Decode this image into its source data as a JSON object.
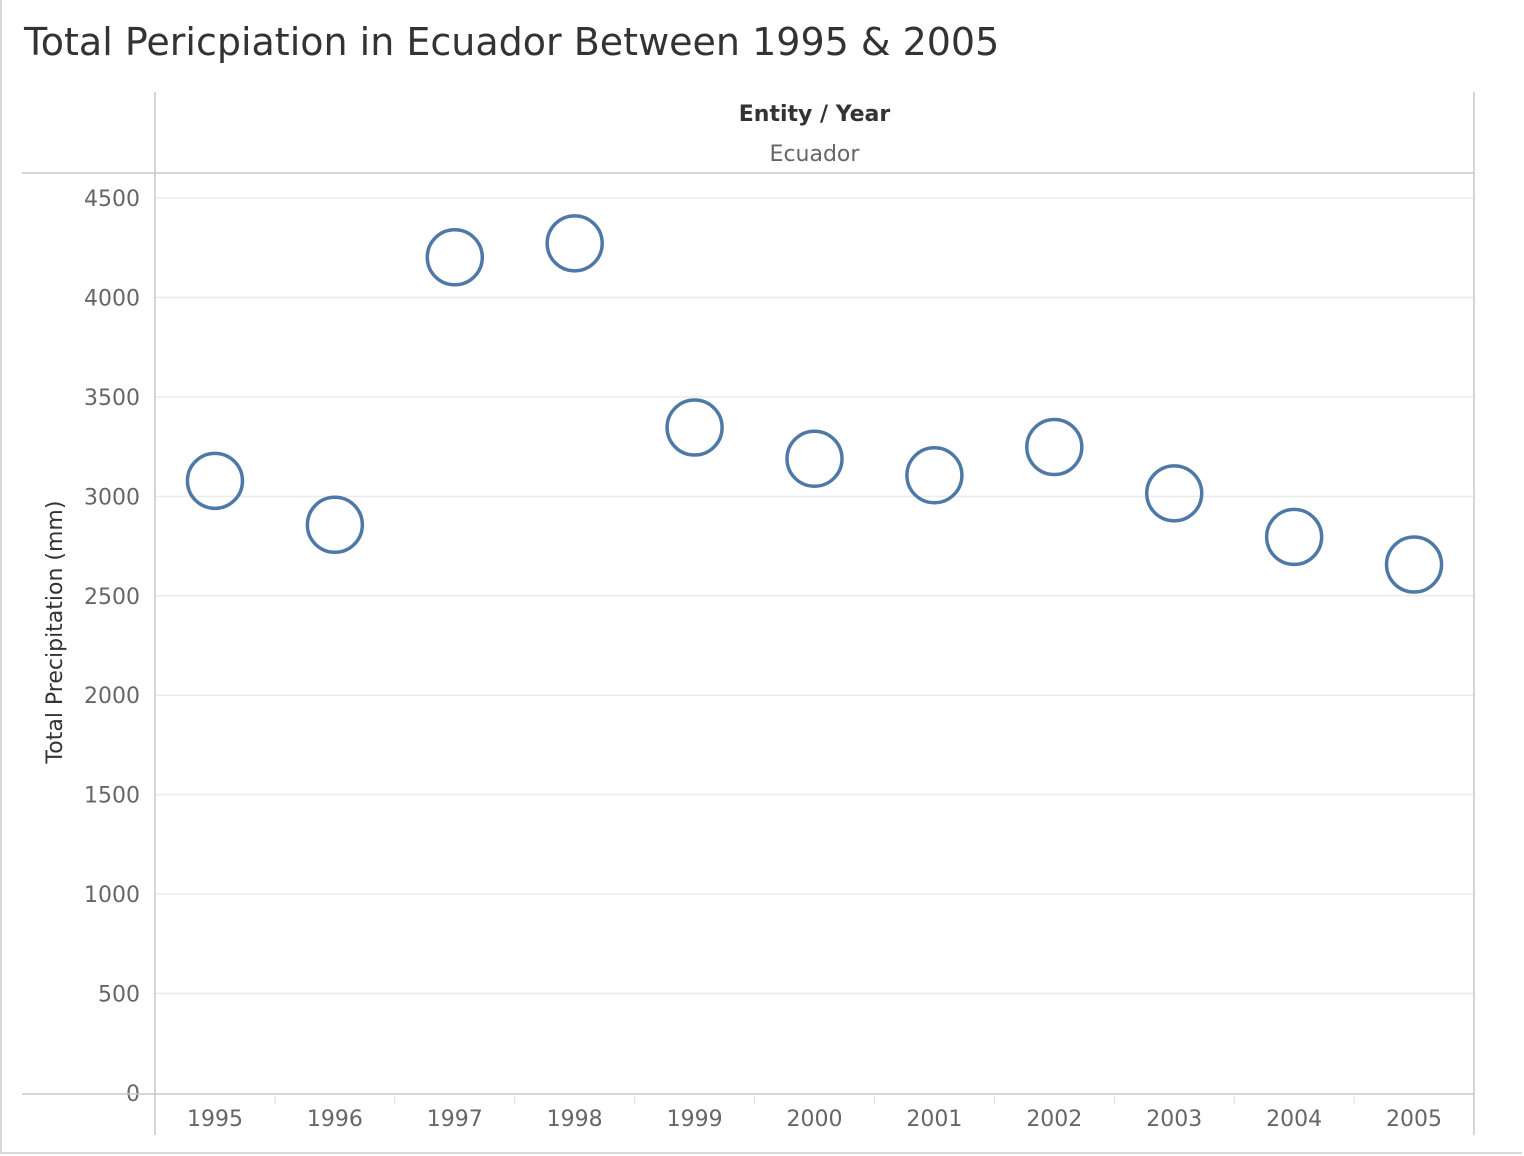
{
  "title": "Total Pericpiation in Ecuador Between 1995 & 2005",
  "colors": {
    "marker": "#4e79a7",
    "grid": "#ebebeb",
    "axis": "#c8c8c8",
    "text": "#666666",
    "header_text": "#333333"
  },
  "chart_data": {
    "type": "scatter",
    "marker": "open-circle",
    "column_header": "Entity / Year",
    "column_value": "Ecuador",
    "ylabel": "Total Precipitation (mm)",
    "xlabel": "",
    "ylim": [
      0,
      4500
    ],
    "yticks": [
      0,
      500,
      1000,
      1500,
      2000,
      2500,
      3000,
      3500,
      4000,
      4500
    ],
    "grid": true,
    "categories": [
      "1995",
      "1996",
      "1997",
      "1998",
      "1999",
      "2000",
      "2001",
      "2002",
      "2003",
      "2004",
      "2005"
    ],
    "values": [
      3078,
      2857,
      4202,
      4272,
      3346,
      3189,
      3106,
      3248,
      3015,
      2796,
      2657
    ]
  }
}
